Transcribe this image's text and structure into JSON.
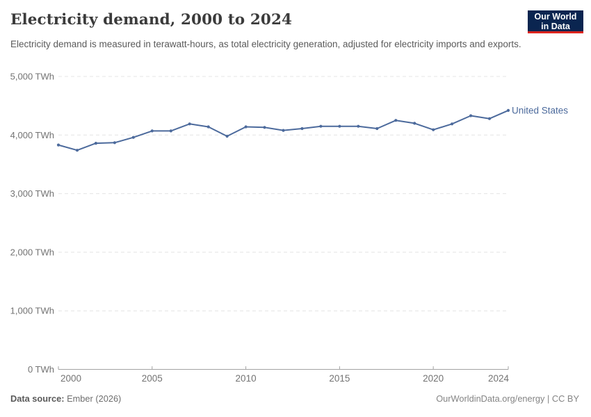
{
  "header": {
    "title": "Electricity demand, 2000 to 2024",
    "subtitle": "Electricity demand is measured in terawatt-hours, as total electricity generation, adjusted for electricity imports and exports.",
    "logo": {
      "line1": "Our World",
      "line2": "in Data"
    }
  },
  "footer": {
    "source_label": "Data source:",
    "source_value": " Ember (2026)",
    "link_text": "OurWorldinData.org/energy | CC BY"
  },
  "colors": {
    "series_blue": "#4c6a9c",
    "logo_bg": "#0a2550",
    "logo_red": "#dc241d",
    "gridline": "#e4e4e4",
    "axis_line": "#a3a3a3",
    "axis_text": "#737373"
  },
  "chart_data": {
    "type": "line",
    "title": "Electricity demand, 2000 to 2024",
    "unit": "TWh",
    "xlabel": "",
    "ylabel": "",
    "xlim": [
      2000,
      2024
    ],
    "ylim": [
      0,
      5000
    ],
    "grid": "horizontal-dashed",
    "legend_position": "end-of-line-label",
    "x": [
      2000,
      2001,
      2002,
      2003,
      2004,
      2005,
      2006,
      2007,
      2008,
      2009,
      2010,
      2011,
      2012,
      2013,
      2014,
      2015,
      2016,
      2017,
      2018,
      2019,
      2020,
      2021,
      2022,
      2023,
      2024
    ],
    "series": [
      {
        "name": "United States",
        "color": "#4c6a9c",
        "values": [
          3830,
          3740,
          3860,
          3870,
          3960,
          4070,
          4070,
          4190,
          4140,
          3980,
          4140,
          4130,
          4080,
          4110,
          4150,
          4150,
          4150,
          4110,
          4250,
          4200,
          4090,
          4190,
          4330,
          4280,
          4420
        ]
      }
    ],
    "yticks": [
      {
        "value": 0,
        "label": "0 TWh"
      },
      {
        "value": 1000,
        "label": "1,000 TWh"
      },
      {
        "value": 2000,
        "label": "2,000 TWh"
      },
      {
        "value": 3000,
        "label": "3,000 TWh"
      },
      {
        "value": 4000,
        "label": "4,000 TWh"
      },
      {
        "value": 5000,
        "label": "5,000 TWh"
      }
    ],
    "xticks": [
      {
        "value": 2000,
        "label": "2000"
      },
      {
        "value": 2005,
        "label": "2005"
      },
      {
        "value": 2010,
        "label": "2010"
      },
      {
        "value": 2015,
        "label": "2015"
      },
      {
        "value": 2020,
        "label": "2020"
      },
      {
        "value": 2024,
        "label": "2024"
      }
    ]
  }
}
